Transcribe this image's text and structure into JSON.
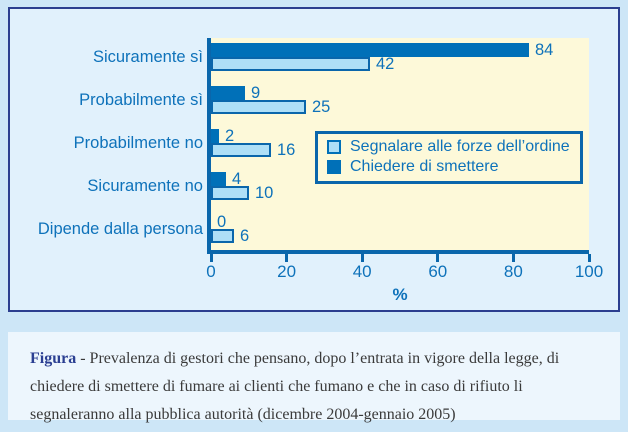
{
  "chart_data": {
    "type": "bar",
    "orientation": "horizontal",
    "categories": [
      "Sicuramente sì",
      "Probabilmente sì",
      "Probabilmente no",
      "Sicuramente no",
      "Dipende dalla persona"
    ],
    "series": [
      {
        "name": "Chiedere di smettere",
        "role": "dark",
        "values": [
          84,
          9,
          2,
          4,
          0
        ]
      },
      {
        "name": "Segnalare alle forze dell’ordine",
        "role": "light",
        "values": [
          42,
          25,
          16,
          10,
          6
        ]
      }
    ],
    "xlabel": "%",
    "xlim": [
      0,
      100
    ],
    "x_ticks": [
      0,
      20,
      40,
      60,
      80,
      100
    ],
    "grid": false,
    "legend_position": "middle-right",
    "value_labels": true
  },
  "legend": {
    "items": [
      {
        "label": "Segnalare alle forze dell’ordine",
        "swatch": "light"
      },
      {
        "label": "Chiedere di smettere",
        "swatch": "dark"
      }
    ]
  },
  "caption": {
    "label": "Figura",
    "separator": " - ",
    "text": "Prevalenza di gestori che pensano, dopo l’entrata in vigore della legge, di chiedere di smettere di fumare ai clienti che fumano e che in caso di rifiuto li segnaleranno alla pubblica autorità (dicembre 2004-gennaio 2005)"
  },
  "colors": {
    "page_bg": "#cde6f7",
    "panel_bg": "#e1f1fc",
    "panel_border": "#2b3e8f",
    "plot_bg": "#fdf9d9",
    "series_dark": "#0070b8",
    "series_light": "#aedff7",
    "axis_blue": "#0a66ab",
    "text_blue": "#0e72ba",
    "caption_bg": "#edf6fd",
    "caption_text": "#3a3a3a",
    "figura_color": "#2b3f92"
  }
}
